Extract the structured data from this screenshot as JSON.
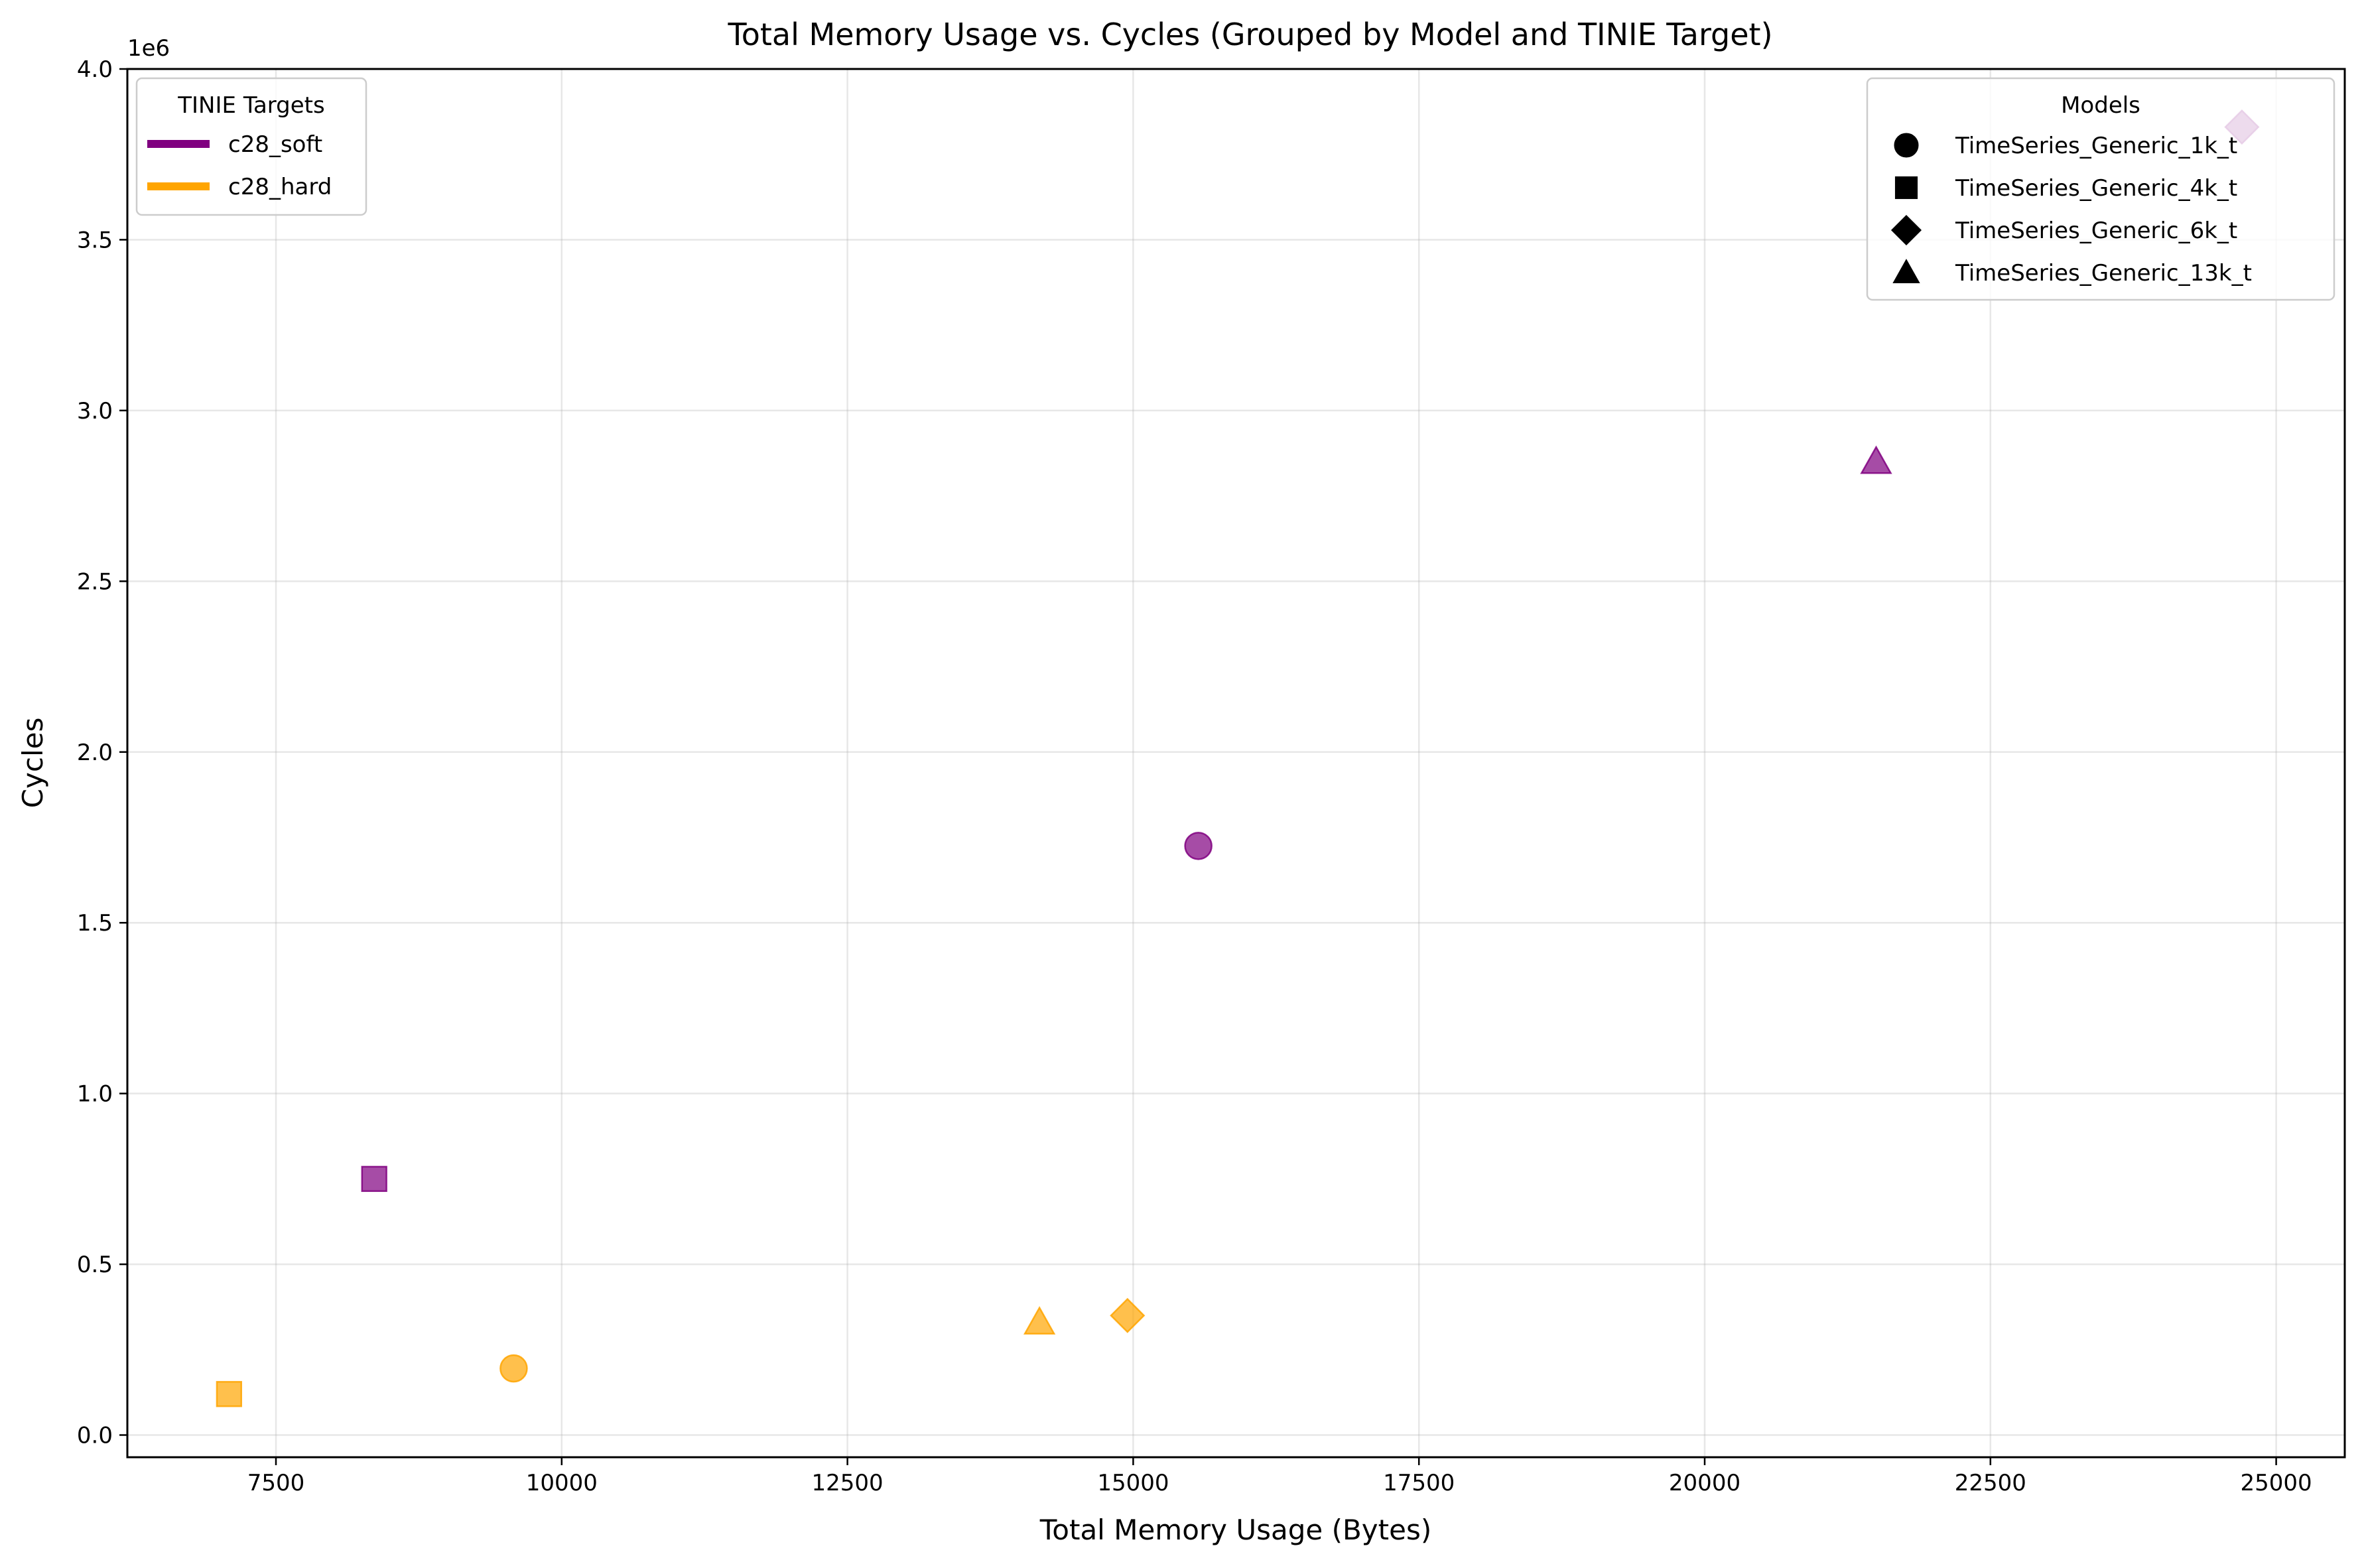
{
  "chart_data": {
    "type": "scatter",
    "title": "Total Memory Usage vs. Cycles (Grouped by Model and TINIE Target)",
    "xlabel": "Total Memory Usage (Bytes)",
    "ylabel": "Cycles",
    "xlim": [
      6200,
      25600
    ],
    "ylim": [
      -65000,
      4000000
    ],
    "y_offset_label": "1e6",
    "xticks": [
      7500,
      10000,
      12500,
      15000,
      17500,
      20000,
      22500,
      25000
    ],
    "xtick_labels": [
      "7500",
      "10000",
      "12500",
      "15000",
      "17500",
      "20000",
      "22500",
      "25000"
    ],
    "yticks": [
      0,
      500000,
      1000000,
      1500000,
      2000000,
      2500000,
      3000000,
      3500000,
      4000000
    ],
    "ytick_labels": [
      "0.0",
      "0.5",
      "1.0",
      "1.5",
      "2.0",
      "2.5",
      "3.0",
      "3.5",
      "4.0"
    ],
    "grid": true,
    "targets": [
      {
        "name": "c28_soft",
        "color": "#800080"
      },
      {
        "name": "c28_hard",
        "color": "#FFA500"
      }
    ],
    "models": [
      {
        "name": "TimeSeries_Generic_1k_t",
        "marker": "circle"
      },
      {
        "name": "TimeSeries_Generic_4k_t",
        "marker": "square"
      },
      {
        "name": "TimeSeries_Generic_6k_t",
        "marker": "diamond"
      },
      {
        "name": "TimeSeries_Generic_13k_t",
        "marker": "triangle"
      }
    ],
    "points": [
      {
        "model": "TimeSeries_Generic_1k_t",
        "target": "c28_soft",
        "x": 15570,
        "y": 1725000
      },
      {
        "model": "TimeSeries_Generic_4k_t",
        "target": "c28_soft",
        "x": 8360,
        "y": 750000
      },
      {
        "model": "TimeSeries_Generic_6k_t",
        "target": "c28_soft",
        "x": 24700,
        "y": 3830000
      },
      {
        "model": "TimeSeries_Generic_13k_t",
        "target": "c28_soft",
        "x": 21500,
        "y": 2850000
      },
      {
        "model": "TimeSeries_Generic_1k_t",
        "target": "c28_hard",
        "x": 9580,
        "y": 195000
      },
      {
        "model": "TimeSeries_Generic_4k_t",
        "target": "c28_hard",
        "x": 7090,
        "y": 120000
      },
      {
        "model": "TimeSeries_Generic_6k_t",
        "target": "c28_hard",
        "x": 14950,
        "y": 350000
      },
      {
        "model": "TimeSeries_Generic_13k_t",
        "target": "c28_hard",
        "x": 14180,
        "y": 330000
      }
    ],
    "legend_targets": {
      "title": "TINIE Targets",
      "position": "upper-left"
    },
    "legend_models": {
      "title": "Models",
      "position": "upper-right"
    }
  }
}
